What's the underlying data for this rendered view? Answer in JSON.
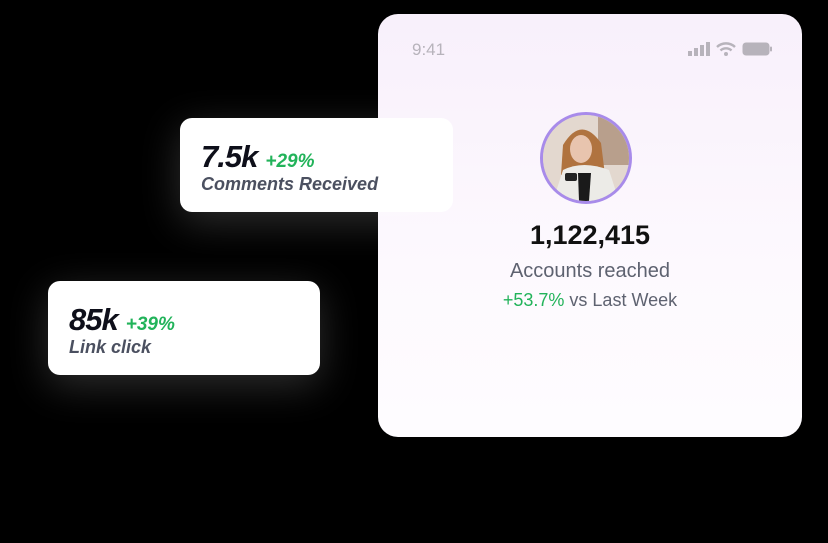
{
  "phone": {
    "time": "9:41",
    "status_icons": [
      "signal-icon",
      "wifi-icon",
      "battery-icon"
    ],
    "accounts_reached": "1,122,415",
    "accounts_label": "Accounts reached",
    "change_value": "+53.7%",
    "change_suffix": " vs Last Week"
  },
  "cards": [
    {
      "value": "7.5k",
      "change": "+29%",
      "label": "Comments Received"
    },
    {
      "value": "85k",
      "change": "+39%",
      "label": "Link click"
    }
  ],
  "colors": {
    "accent_green": "#22b35a",
    "avatar_ring": "#a88bea",
    "background": "#000000"
  }
}
